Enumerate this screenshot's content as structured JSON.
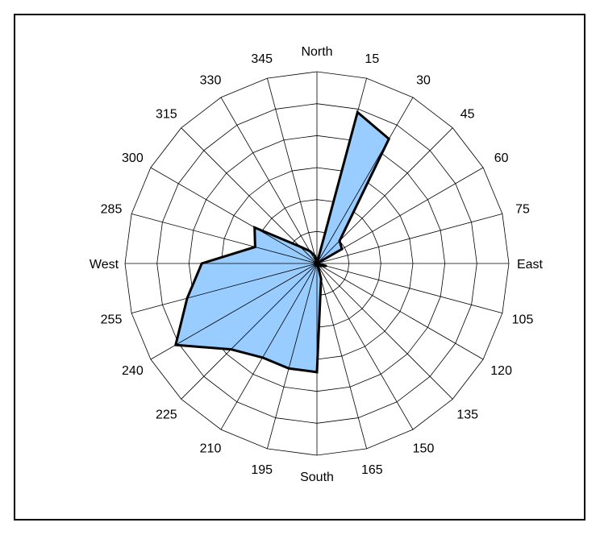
{
  "chart_data": {
    "type": "radar",
    "directions": [
      "North",
      "15",
      "30",
      "45",
      "60",
      "75",
      "East",
      "105",
      "120",
      "135",
      "150",
      "165",
      "South",
      "195",
      "210",
      "225",
      "240",
      "255",
      "West",
      "285",
      "300",
      "315",
      "330",
      "345"
    ],
    "angles_deg": [
      0,
      15,
      30,
      45,
      60,
      75,
      90,
      105,
      120,
      135,
      150,
      165,
      180,
      195,
      210,
      225,
      240,
      255,
      270,
      285,
      300,
      315,
      330,
      345
    ],
    "values": [
      0,
      4.9,
      4.5,
      1.0,
      0.9,
      0,
      0,
      0.3,
      0.15,
      0.1,
      0.05,
      0.5,
      3.4,
      3.4,
      3.4,
      3.8,
      5.1,
      4.2,
      3.6,
      2.0,
      2.25,
      0.75,
      0.45,
      0.25
    ],
    "rlim": [
      0,
      6
    ],
    "rings": 6,
    "grid": true,
    "legend": "none",
    "title": "",
    "fill_color": "#99ccff",
    "line_color": "#000000"
  }
}
